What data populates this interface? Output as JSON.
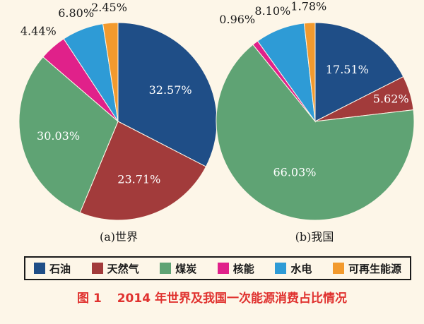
{
  "chart_data": [
    {
      "type": "pie",
      "subtitle": "(a)世界",
      "categories": [
        "石油",
        "天然气",
        "煤炭",
        "核能",
        "水电",
        "可再生能源"
      ],
      "values": [
        32.57,
        23.71,
        30.03,
        4.44,
        6.8,
        2.45
      ],
      "labels": [
        "32.57%",
        "23.71%",
        "30.03%",
        "4.44%",
        "6.80%",
        "2.45%"
      ],
      "start": "12 o'clock",
      "direction": "clockwise"
    },
    {
      "type": "pie",
      "subtitle": "(b)我国",
      "categories": [
        "石油",
        "天然气",
        "煤炭",
        "核能",
        "水电",
        "可再生能源"
      ],
      "values": [
        17.51,
        5.62,
        66.03,
        0.96,
        8.1,
        1.78
      ],
      "labels": [
        "17.51%",
        "5.62%",
        "66.03%",
        "0.96%",
        "8.10%",
        "1.78%"
      ],
      "start": "12 o'clock",
      "direction": "clockwise"
    }
  ],
  "legend": {
    "placement": "bottom",
    "items": [
      {
        "label": "石油",
        "color": "#1f4e87"
      },
      {
        "label": "天然气",
        "color": "#a23b3b"
      },
      {
        "label": "煤炭",
        "color": "#5fa374"
      },
      {
        "label": "核能",
        "color": "#e0218a"
      },
      {
        "label": "水电",
        "color": "#2e9bd6"
      },
      {
        "label": "可再生能源",
        "color": "#f29a2e"
      }
    ]
  },
  "caption": {
    "figure_no": "图 1",
    "text": "2014 年世界及我国一次能源消费占比情况",
    "color": "#e0322f"
  }
}
